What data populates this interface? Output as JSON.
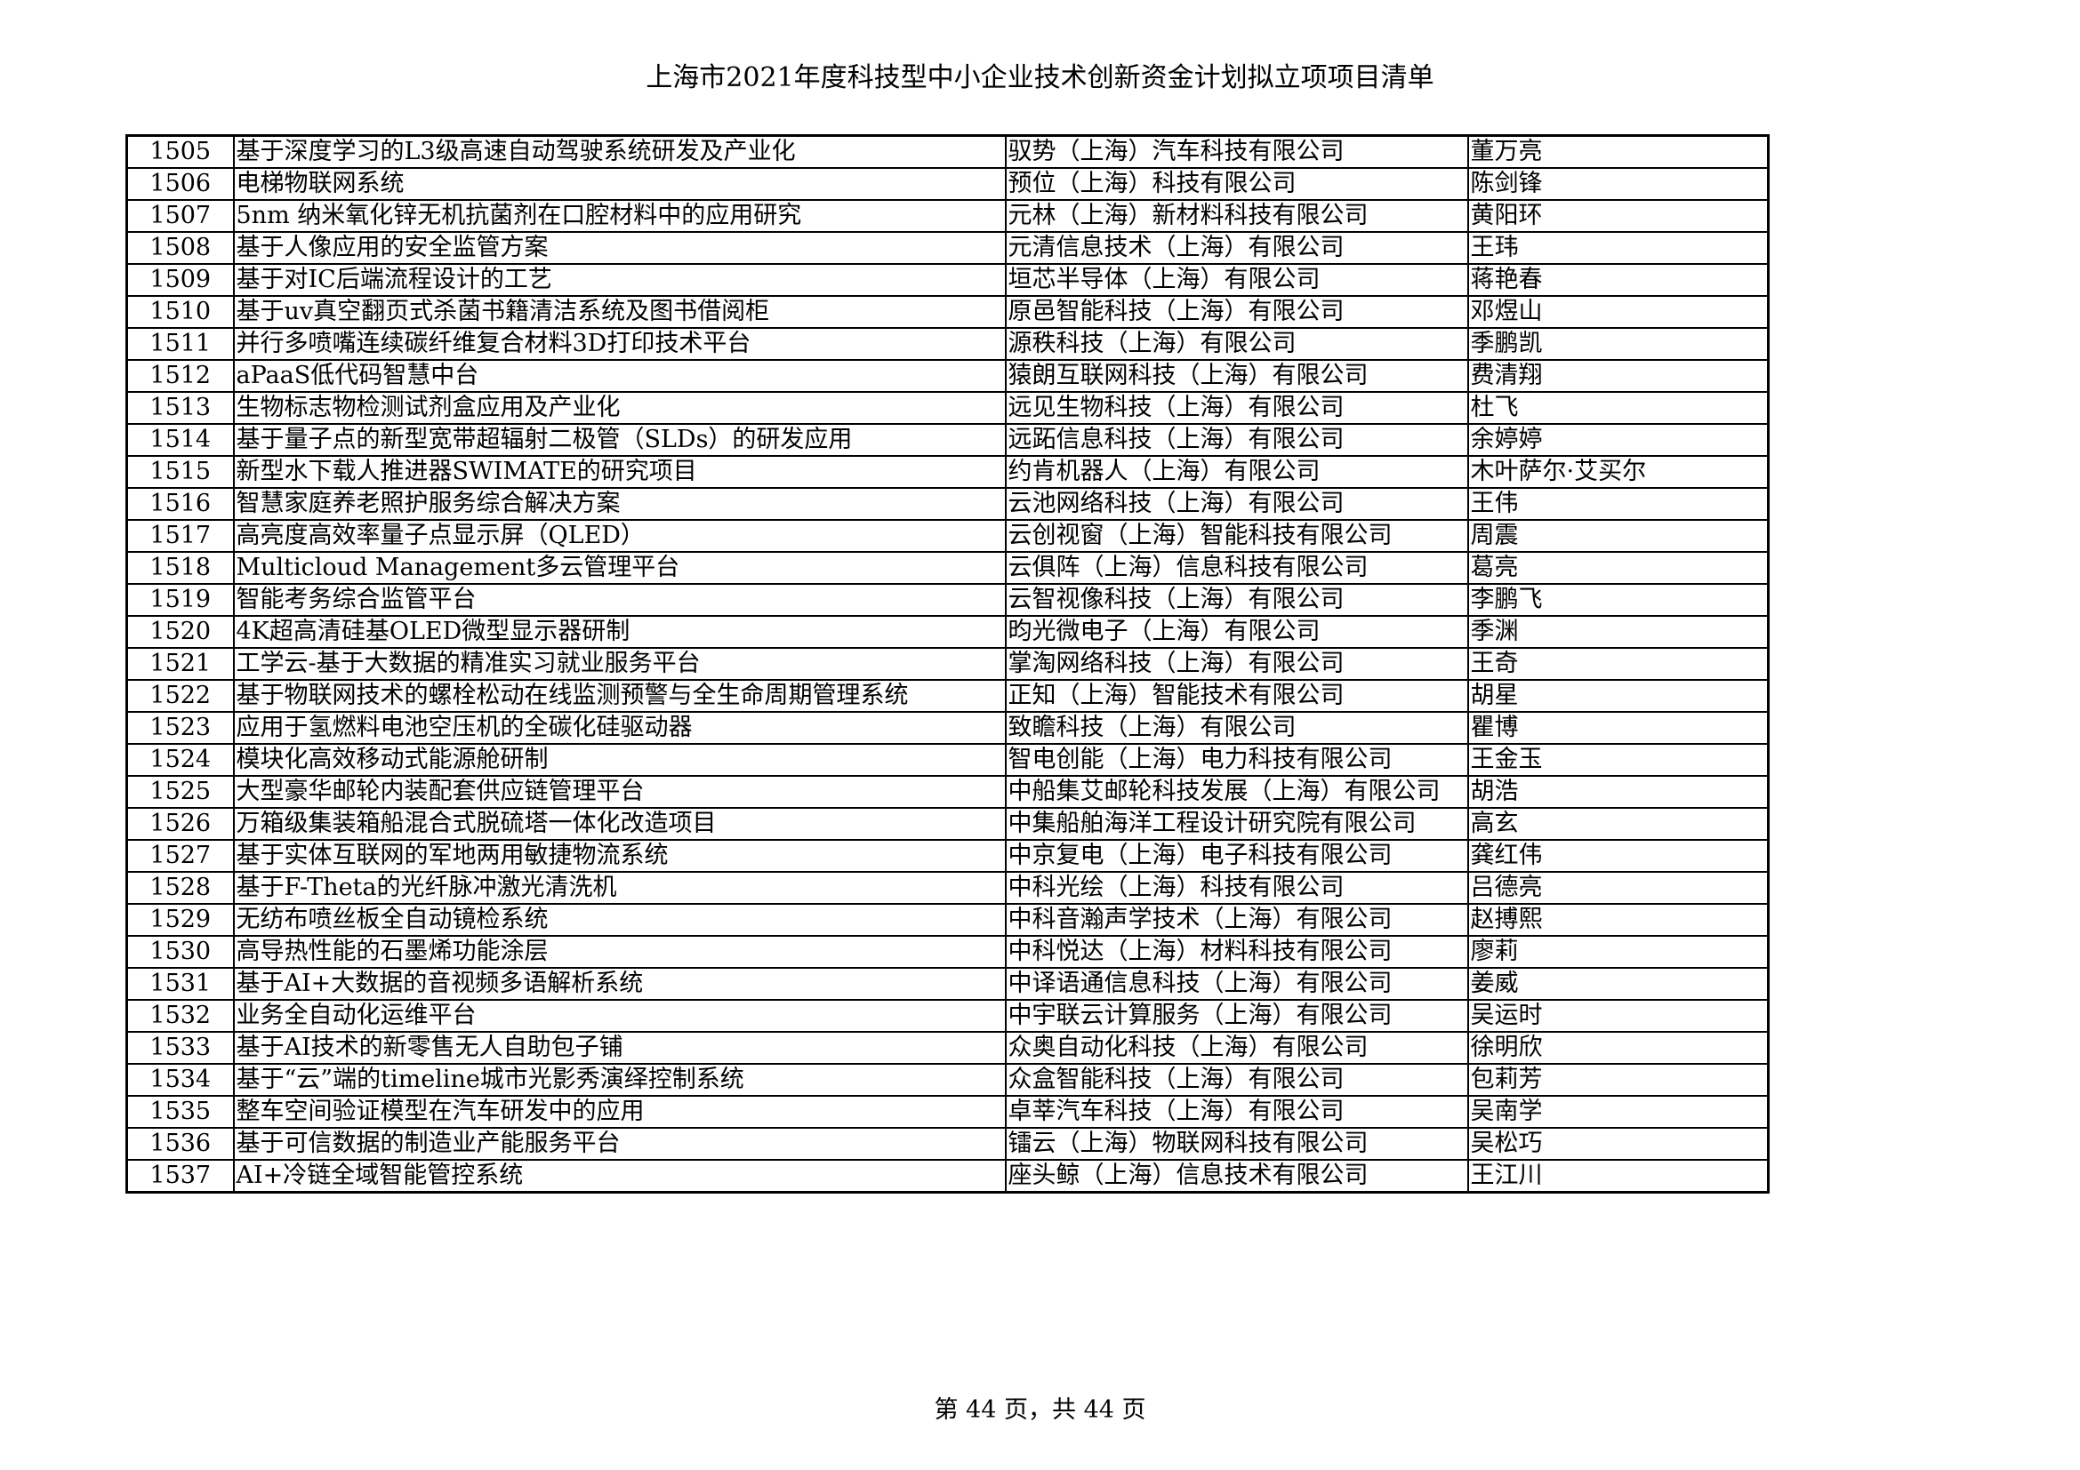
{
  "title": "上海市2021年度科技型中小企业技术创新资金计划拟立项项目清单",
  "rows": [
    [
      "1505",
      "基于深度学习的L3级高速自动驾驶系统研发及产业化",
      "驭势（上海）汽车科技有限公司",
      "董万亮"
    ],
    [
      "1506",
      "电梯物联网系统",
      "预位（上海）科技有限公司",
      "陈剑锋"
    ],
    [
      "1507",
      "5nm 纳米氧化锌无机抗菌剂在口腔材料中的应用研究",
      "元林（上海）新材料科技有限公司",
      "黄阳环"
    ],
    [
      "1508",
      "基于人像应用的安全监管方案",
      "元清信息技术（上海）有限公司",
      "王玮"
    ],
    [
      "1509",
      "基于对IC后端流程设计的工艺",
      "垣芯半导体（上海）有限公司",
      "蒋艳春"
    ],
    [
      "1510",
      "基于uv真空翻页式杀菌书籍清洁系统及图书借阅柜",
      "原邑智能科技（上海）有限公司",
      "邓煜山"
    ],
    [
      "1511",
      "并行多喷嘴连续碳纤维复合材料3D打印技术平台",
      "源秩科技（上海）有限公司",
      "季鹏凯"
    ],
    [
      "1512",
      "aPaaS低代码智慧中台",
      "猿朗互联网科技（上海）有限公司",
      "费清翔"
    ],
    [
      "1513",
      "生物标志物检测试剂盒应用及产业化",
      "远见生物科技（上海）有限公司",
      "杜飞"
    ],
    [
      "1514",
      "基于量子点的新型宽带超辐射二极管（SLDs）的研发应用",
      "远跖信息科技（上海）有限公司",
      "余婷婷"
    ],
    [
      "1515",
      "新型水下载人推进器SWIMATE的研究项目",
      "约肯机器人（上海）有限公司",
      "木叶萨尔·艾买尔"
    ],
    [
      "1516",
      "智慧家庭养老照护服务综合解决方案",
      "云池网络科技（上海）有限公司",
      "王伟"
    ],
    [
      "1517",
      "高亮度高效率量子点显示屏（QLED）",
      "云创视窗（上海）智能科技有限公司",
      "周震"
    ],
    [
      "1518",
      "Multicloud Management多云管理平台",
      "云俱阵（上海）信息科技有限公司",
      "葛亮"
    ],
    [
      "1519",
      "智能考务综合监管平台",
      "云智视像科技（上海）有限公司",
      "李鹏飞"
    ],
    [
      "1520",
      "4K超高清硅基OLED微型显示器研制",
      "昀光微电子（上海）有限公司",
      "季渊"
    ],
    [
      "1521",
      "工学云-基于大数据的精准实习就业服务平台",
      "掌淘网络科技（上海）有限公司",
      "王奇"
    ],
    [
      "1522",
      "基于物联网技术的螺栓松动在线监测预警与全生命周期管理系统",
      "正知（上海）智能技术有限公司",
      "胡星"
    ],
    [
      "1523",
      "应用于氢燃料电池空压机的全碳化硅驱动器",
      "致瞻科技（上海）有限公司",
      "瞿博"
    ],
    [
      "1524",
      "模块化高效移动式能源舱研制",
      "智电创能（上海）电力科技有限公司",
      "王金玉"
    ],
    [
      "1525",
      "大型豪华邮轮内装配套供应链管理平台",
      "中船集艾邮轮科技发展（上海）有限公司",
      "胡浩"
    ],
    [
      "1526",
      "万箱级集装箱船混合式脱硫塔一体化改造项目",
      "中集船舶海洋工程设计研究院有限公司",
      "高玄"
    ],
    [
      "1527",
      "基于实体互联网的军地两用敏捷物流系统",
      "中京复电（上海）电子科技有限公司",
      "龚红伟"
    ],
    [
      "1528",
      "基于F-Theta的光纤脉冲激光清洗机",
      "中科光绘（上海）科技有限公司",
      "吕德亮"
    ],
    [
      "1529",
      "无纺布喷丝板全自动镜检系统",
      "中科音瀚声学技术（上海）有限公司",
      "赵搏熙"
    ],
    [
      "1530",
      "高导热性能的石墨烯功能涂层",
      "中科悦达（上海）材料科技有限公司",
      "廖莉"
    ],
    [
      "1531",
      "基于AI+大数据的音视频多语解析系统",
      "中译语通信息科技（上海）有限公司",
      "姜威"
    ],
    [
      "1532",
      "业务全自动化运维平台",
      "中宇联云计算服务（上海）有限公司",
      "吴运时"
    ],
    [
      "1533",
      "基于AI技术的新零售无人自助包子铺",
      "众奥自动化科技（上海）有限公司",
      "徐明欣"
    ],
    [
      "1534",
      "基于“云”端的timeline城市光影秀演绎控制系统",
      "众盒智能科技（上海）有限公司",
      "包莉芳"
    ],
    [
      "1535",
      "整车空间验证模型在汽车研发中的应用",
      "卓莘汽车科技（上海）有限公司",
      "吴南学"
    ],
    [
      "1536",
      "基于可信数据的制造业产能服务平台",
      "镭云（上海）物联网科技有限公司",
      "吴松巧"
    ],
    [
      "1537",
      "AI+冷链全域智能管控系统",
      "座头鲸（上海）信息技术有限公司",
      "王江川"
    ]
  ],
  "footer": "第 44 页，共 44 页"
}
